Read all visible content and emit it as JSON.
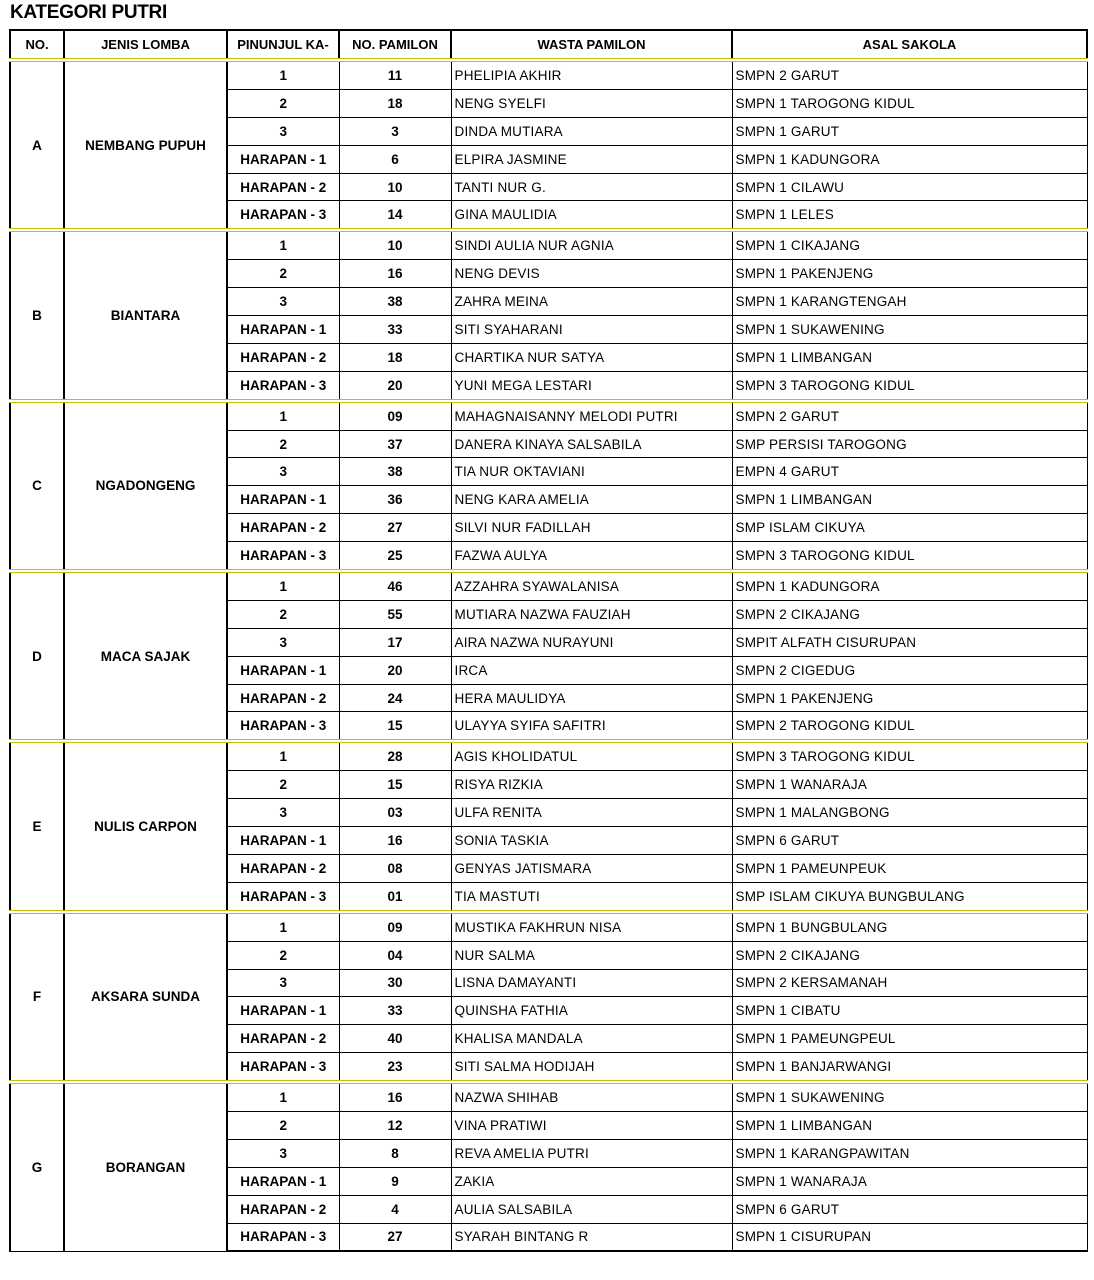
{
  "title": "KATEGORI PUTRI",
  "columns": [
    "NO.",
    "JENIS LOMBA",
    "PINUNJUL KA-",
    "NO. PAMILON",
    "WASTA PAMILON",
    "ASAL SAKOLA"
  ],
  "groups": [
    {
      "no": "A",
      "lomba": "NEMBANG PUPUH",
      "rows": [
        [
          "1",
          "11",
          "PHELIPIA AKHIR",
          "SMPN 2 GARUT"
        ],
        [
          "2",
          "18",
          "NENG SYELFI",
          "SMPN 1 TAROGONG KIDUL"
        ],
        [
          "3",
          "3",
          "DINDA MUTIARA",
          "SMPN 1 GARUT"
        ],
        [
          "HARAPAN - 1",
          "6",
          "ELPIRA JASMINE",
          "SMPN 1 KADUNGORA"
        ],
        [
          "HARAPAN - 2",
          "10",
          "TANTI NUR G.",
          "SMPN 1 CILAWU"
        ],
        [
          "HARAPAN - 3",
          "14",
          "GINA MAULIDIA",
          "SMPN 1 LELES"
        ]
      ]
    },
    {
      "no": "B",
      "lomba": "BIANTARA",
      "rows": [
        [
          "1",
          "10",
          "SINDI AULIA NUR AGNIA",
          "SMPN 1 CIKAJANG"
        ],
        [
          "2",
          "16",
          "NENG DEVIS",
          "SMPN 1 PAKENJENG"
        ],
        [
          "3",
          "38",
          "ZAHRA MEINA",
          "SMPN 1 KARANGTENGAH"
        ],
        [
          "HARAPAN - 1",
          "33",
          "SITI SYAHARANI",
          "SMPN 1 SUKAWENING"
        ],
        [
          "HARAPAN - 2",
          "18",
          "CHARTIKA NUR SATYA",
          "SMPN 1 LIMBANGAN"
        ],
        [
          "HARAPAN - 3",
          "20",
          "YUNI MEGA LESTARI",
          "SMPN 3 TAROGONG KIDUL"
        ]
      ]
    },
    {
      "no": "C",
      "lomba": "NGADONGENG",
      "rows": [
        [
          "1",
          "09",
          "MAHAGNAISANNY MELODI PUTRI",
          "SMPN 2 GARUT"
        ],
        [
          "2",
          "37",
          "DANERA KINAYA SALSABILA",
          "SMP PERSISI TAROGONG"
        ],
        [
          "3",
          "38",
          "TIA NUR OKTAVIANI",
          "EMPN 4 GARUT"
        ],
        [
          "HARAPAN - 1",
          "36",
          "NENG KARA AMELIA",
          "SMPN 1 LIMBANGAN"
        ],
        [
          "HARAPAN - 2",
          "27",
          "SILVI NUR FADILLAH",
          "SMP ISLAM CIKUYA"
        ],
        [
          "HARAPAN - 3",
          "25",
          "FAZWA AULYA",
          "SMPN 3 TAROGONG KIDUL"
        ]
      ]
    },
    {
      "no": "D",
      "lomba": "MACA SAJAK",
      "rows": [
        [
          "1",
          "46",
          "AZZAHRA SYAWALANISA",
          "SMPN 1 KADUNGORA"
        ],
        [
          "2",
          "55",
          "MUTIARA NAZWA FAUZIAH",
          "SMPN 2 CIKAJANG"
        ],
        [
          "3",
          "17",
          "AIRA NAZWA NURAYUNI",
          "SMPIT ALFATH CISURUPAN"
        ],
        [
          "HARAPAN - 1",
          "20",
          "IRCA",
          "SMPN 2 CIGEDUG"
        ],
        [
          "HARAPAN - 2",
          "24",
          "HERA MAULIDYA",
          "SMPN 1 PAKENJENG"
        ],
        [
          "HARAPAN - 3",
          "15",
          "ULAYYA SYIFA SAFITRI",
          "SMPN 2 TAROGONG KIDUL"
        ]
      ]
    },
    {
      "no": "E",
      "lomba": "NULIS CARPON",
      "rows": [
        [
          "1",
          "28",
          "AGIS KHOLIDATUL",
          "SMPN 3 TAROGONG KIDUL"
        ],
        [
          "2",
          "15",
          "RISYA RIZKIA",
          "SMPN 1 WANARAJA"
        ],
        [
          "3",
          "03",
          "ULFA RENITA",
          "SMPN 1 MALANGBONG"
        ],
        [
          "HARAPAN - 1",
          "16",
          "SONIA TASKIA",
          "SMPN 6 GARUT"
        ],
        [
          "HARAPAN - 2",
          "08",
          "GENYAS JATISMARA",
          "SMPN 1 PAMEUNPEUK"
        ],
        [
          "HARAPAN - 3",
          "01",
          "TIA MASTUTI",
          "SMP ISLAM CIKUYA BUNGBULANG"
        ]
      ]
    },
    {
      "no": "F",
      "lomba": "AKSARA SUNDA",
      "rows": [
        [
          "1",
          "09",
          "MUSTIKA FAKHRUN NISA",
          "SMPN 1 BUNGBULANG"
        ],
        [
          "2",
          "04",
          "NUR SALMA",
          "SMPN 2 CIKAJANG"
        ],
        [
          "3",
          "30",
          "LISNA DAMAYANTI",
          "SMPN 2 KERSAMANAH"
        ],
        [
          "HARAPAN - 1",
          "33",
          "QUINSHA FATHIA",
          "SMPN 1 CIBATU"
        ],
        [
          "HARAPAN - 2",
          "40",
          "KHALISA MANDALA",
          "SMPN 1 PAMEUNGPEUL"
        ],
        [
          "HARAPAN - 3",
          "23",
          "SITI SALMA HODIJAH",
          "SMPN 1 BANJARWANGI"
        ]
      ]
    },
    {
      "no": "G",
      "lomba": "BORANGAN",
      "rows": [
        [
          "1",
          "16",
          "NAZWA SHIHAB",
          "SMPN 1 SUKAWENING"
        ],
        [
          "2",
          "12",
          "VINA PRATIWI",
          "SMPN 1 LIMBANGAN"
        ],
        [
          "3",
          "8",
          "REVA AMELIA PUTRI",
          "SMPN 1 KARANGPAWITAN"
        ],
        [
          "HARAPAN - 1",
          "9",
          "ZAKIA",
          "SMPN 1 WANARAJA"
        ],
        [
          "HARAPAN - 2",
          "4",
          "AULIA SALSABILA",
          "SMPN 6 GARUT"
        ],
        [
          "HARAPAN - 3",
          "27",
          "SYARAH BINTANG R",
          "SMPN 1 CISURUPAN"
        ]
      ]
    }
  ]
}
